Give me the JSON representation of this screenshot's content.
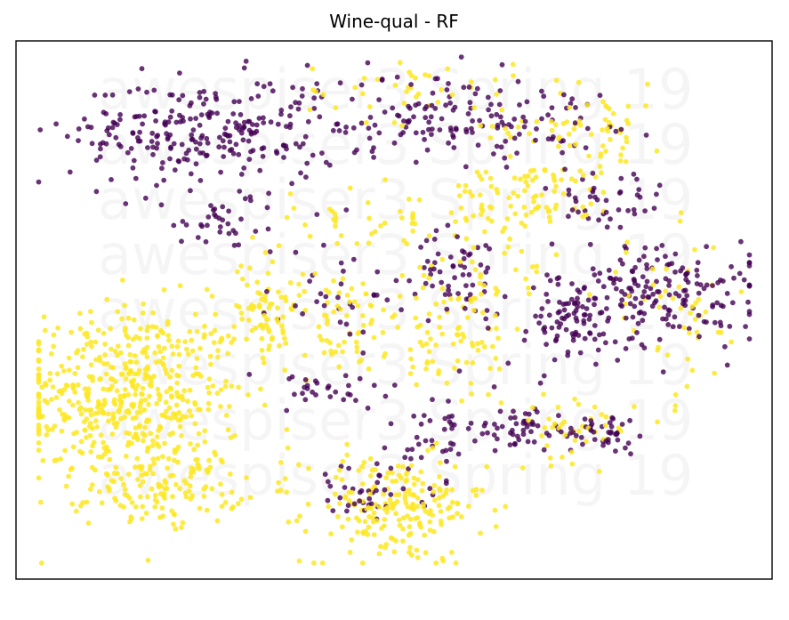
{
  "chart_data": {
    "type": "scatter",
    "title": "Wine-qual - RF",
    "xlabel": "",
    "ylabel": "",
    "axis_ticks": "none",
    "grid": false,
    "legend": "none",
    "watermark": "awespiser3 Spring 19",
    "xlim": [
      0,
      100
    ],
    "ylim": [
      0,
      100
    ],
    "series": [
      {
        "color": "#fde725",
        "clusters": [
          {
            "cx": 15,
            "cy": 34,
            "sx": 7.5,
            "sy": 8.5,
            "n": 520
          },
          {
            "cx": 20,
            "cy": 17,
            "sx": 5,
            "sy": 3.5,
            "n": 120
          },
          {
            "cx": 50,
            "cy": 13,
            "sx": 6,
            "sy": 5,
            "n": 210
          },
          {
            "cx": 33,
            "cy": 51,
            "sx": 2,
            "sy": 6,
            "n": 60
          },
          {
            "cx": 42,
            "cy": 48,
            "sx": 5,
            "sy": 5,
            "n": 70
          },
          {
            "cx": 57,
            "cy": 44,
            "sx": 5,
            "sy": 6,
            "n": 80
          },
          {
            "cx": 68,
            "cy": 71,
            "sx": 6,
            "sy": 3,
            "n": 80
          },
          {
            "cx": 75,
            "cy": 84,
            "sx": 6,
            "sy": 4,
            "n": 70
          },
          {
            "cx": 52,
            "cy": 91,
            "sx": 7,
            "sy": 3,
            "n": 40
          },
          {
            "cx": 63,
            "cy": 58,
            "sx": 5,
            "sy": 5,
            "n": 40
          },
          {
            "cx": 74,
            "cy": 28,
            "sx": 4,
            "sy": 3,
            "n": 40
          },
          {
            "cx": 47,
            "cy": 67,
            "sx": 8,
            "sy": 3,
            "n": 40
          },
          {
            "cx": 87,
            "cy": 48,
            "sx": 5,
            "sy": 8,
            "n": 50
          }
        ]
      },
      {
        "color": "#440154",
        "clusters": [
          {
            "cx": 25,
            "cy": 83,
            "sx": 9,
            "sy": 5,
            "n": 250
          },
          {
            "cx": 58,
            "cy": 86,
            "sx": 10,
            "sy": 4,
            "n": 160
          },
          {
            "cx": 78,
            "cy": 70,
            "sx": 4,
            "sy": 4,
            "n": 40
          },
          {
            "cx": 85,
            "cy": 53,
            "sx": 7,
            "sy": 5,
            "n": 200
          },
          {
            "cx": 72,
            "cy": 47,
            "sx": 4,
            "sy": 4,
            "n": 60
          },
          {
            "cx": 59,
            "cy": 57,
            "sx": 3,
            "sy": 4,
            "n": 60
          },
          {
            "cx": 67,
            "cy": 28,
            "sx": 3,
            "sy": 2,
            "n": 50
          },
          {
            "cx": 78,
            "cy": 27,
            "sx": 3,
            "sy": 2,
            "n": 40
          },
          {
            "cx": 56,
            "cy": 27,
            "sx": 2,
            "sy": 4,
            "n": 40
          },
          {
            "cx": 46,
            "cy": 16,
            "sx": 4,
            "sy": 3,
            "n": 40
          },
          {
            "cx": 40,
            "cy": 35,
            "sx": 6,
            "sy": 2,
            "n": 30
          },
          {
            "cx": 28,
            "cy": 66,
            "sx": 5,
            "sy": 3,
            "n": 40
          },
          {
            "cx": 44,
            "cy": 52,
            "sx": 5,
            "sy": 4,
            "n": 30
          }
        ]
      }
    ]
  }
}
